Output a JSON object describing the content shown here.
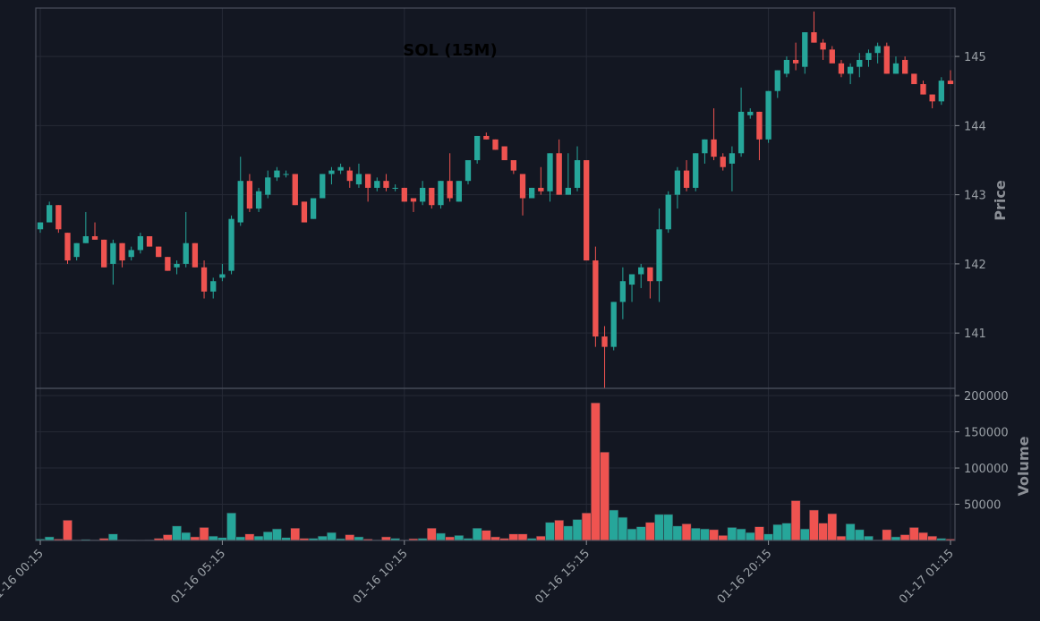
{
  "chart_data": {
    "type": "candlestick",
    "title": "SOL (15M)",
    "price_axis": {
      "label": "Price",
      "ylim": [
        140.2,
        145.7
      ],
      "ticks": [
        "141",
        "142",
        "143",
        "144",
        "145"
      ]
    },
    "volume_axis": {
      "label": "Volume",
      "ylim": [
        0,
        210000
      ],
      "ticks": [
        "50000",
        "100000",
        "150000",
        "200000"
      ]
    },
    "x_ticks": [
      "01-16 00:15",
      "01-16 05:15",
      "01-16 10:15",
      "01-16 15:15",
      "01-16 20:15",
      "01-17 01:15"
    ],
    "grid": true,
    "colors": {
      "background": "#131722",
      "up": "#26a69a",
      "down": "#ef5350",
      "grid": "#262a36",
      "frame": "#4a4f5c"
    },
    "candles": [
      [
        142.5,
        142.6,
        142.45,
        142.6,
        2000
      ],
      [
        142.6,
        142.9,
        142.6,
        142.85,
        5000
      ],
      [
        142.85,
        142.85,
        142.45,
        142.5,
        2000
      ],
      [
        142.45,
        142.45,
        142.0,
        142.05,
        28000
      ],
      [
        142.1,
        142.3,
        142.05,
        142.3,
        1000
      ],
      [
        142.3,
        142.75,
        142.3,
        142.4,
        1500
      ],
      [
        142.4,
        142.6,
        142.35,
        142.35,
        1000
      ],
      [
        142.35,
        142.35,
        141.95,
        141.95,
        3000
      ],
      [
        142.0,
        142.35,
        141.7,
        142.3,
        9000
      ],
      [
        142.3,
        142.3,
        141.95,
        142.05,
        1000
      ],
      [
        142.1,
        142.25,
        142.05,
        142.2,
        800
      ],
      [
        142.2,
        142.45,
        142.15,
        142.4,
        500
      ],
      [
        142.4,
        142.4,
        142.25,
        142.25,
        1000
      ],
      [
        142.25,
        142.25,
        142.1,
        142.1,
        3000
      ],
      [
        142.1,
        142.1,
        141.9,
        141.9,
        8000
      ],
      [
        141.95,
        142.05,
        141.85,
        142.0,
        20000
      ],
      [
        142.0,
        142.75,
        141.95,
        142.3,
        11000
      ],
      [
        142.3,
        142.3,
        141.95,
        141.95,
        5000
      ],
      [
        141.95,
        142.05,
        141.5,
        141.6,
        18000
      ],
      [
        141.6,
        141.8,
        141.5,
        141.75,
        6000
      ],
      [
        141.8,
        142.0,
        141.75,
        141.85,
        4000
      ],
      [
        141.9,
        142.7,
        141.85,
        142.65,
        38000
      ],
      [
        142.6,
        143.55,
        142.55,
        143.2,
        5000
      ],
      [
        143.2,
        143.3,
        142.75,
        142.8,
        9000
      ],
      [
        142.8,
        143.1,
        142.75,
        143.05,
        6000
      ],
      [
        143.0,
        143.35,
        142.95,
        143.25,
        12000
      ],
      [
        143.25,
        143.4,
        143.2,
        143.35,
        16000
      ],
      [
        143.3,
        143.35,
        143.25,
        143.3,
        4000
      ],
      [
        143.3,
        143.3,
        142.85,
        142.85,
        17000
      ],
      [
        142.9,
        142.9,
        142.6,
        142.6,
        3000
      ],
      [
        142.65,
        142.95,
        142.65,
        142.95,
        3000
      ],
      [
        142.95,
        143.3,
        142.95,
        143.3,
        6000
      ],
      [
        143.3,
        143.4,
        143.15,
        143.35,
        11000
      ],
      [
        143.35,
        143.45,
        143.3,
        143.4,
        2500
      ],
      [
        143.35,
        143.4,
        143.1,
        143.2,
        8000
      ],
      [
        143.15,
        143.45,
        143.1,
        143.3,
        5000
      ],
      [
        143.3,
        143.3,
        142.9,
        143.1,
        2000
      ],
      [
        143.1,
        143.25,
        143.05,
        143.2,
        1000
      ],
      [
        143.2,
        143.3,
        143.05,
        143.1,
        5000
      ],
      [
        143.1,
        143.15,
        143.05,
        143.1,
        3000
      ],
      [
        143.1,
        143.1,
        142.9,
        142.9,
        1000
      ],
      [
        142.95,
        142.95,
        142.75,
        142.9,
        2500
      ],
      [
        142.9,
        143.2,
        142.85,
        143.1,
        3000
      ],
      [
        143.1,
        143.1,
        142.8,
        142.85,
        17000
      ],
      [
        142.85,
        143.2,
        142.8,
        143.2,
        10000
      ],
      [
        143.2,
        143.6,
        142.9,
        142.95,
        5000
      ],
      [
        142.9,
        143.2,
        142.9,
        143.2,
        7000
      ],
      [
        143.2,
        143.5,
        143.15,
        143.5,
        3000
      ],
      [
        143.5,
        143.85,
        143.45,
        143.85,
        17000
      ],
      [
        143.85,
        143.9,
        143.8,
        143.8,
        14000
      ],
      [
        143.8,
        143.8,
        143.65,
        143.65,
        5000
      ],
      [
        143.7,
        143.7,
        143.5,
        143.5,
        3000
      ],
      [
        143.5,
        143.5,
        143.3,
        143.35,
        9000
      ],
      [
        143.3,
        143.3,
        142.7,
        142.95,
        9000
      ],
      [
        142.95,
        143.1,
        142.95,
        143.1,
        3000
      ],
      [
        143.1,
        143.4,
        143.0,
        143.05,
        6000
      ],
      [
        143.05,
        143.6,
        142.9,
        143.6,
        25000
      ],
      [
        143.6,
        143.8,
        143.0,
        143.0,
        28000
      ],
      [
        143.0,
        143.6,
        143.0,
        143.1,
        20000
      ],
      [
        143.1,
        143.7,
        143.05,
        143.5,
        29000
      ],
      [
        143.5,
        143.5,
        142.05,
        142.05,
        38000
      ],
      [
        142.05,
        142.25,
        140.8,
        140.95,
        190000
      ],
      [
        140.95,
        141.1,
        140.2,
        140.8,
        122000
      ],
      [
        140.8,
        141.45,
        140.75,
        141.45,
        42000
      ],
      [
        141.45,
        141.95,
        141.2,
        141.75,
        32000
      ],
      [
        141.7,
        141.85,
        141.45,
        141.85,
        16000
      ],
      [
        141.85,
        142.0,
        141.65,
        141.95,
        19000
      ],
      [
        141.95,
        141.95,
        141.5,
        141.75,
        25000
      ],
      [
        141.75,
        142.8,
        141.45,
        142.5,
        36000
      ],
      [
        142.5,
        143.05,
        142.45,
        143.0,
        36000
      ],
      [
        143.0,
        143.4,
        142.8,
        143.35,
        20000
      ],
      [
        143.35,
        143.5,
        143.05,
        143.1,
        23000
      ],
      [
        143.1,
        143.6,
        143.05,
        143.6,
        17000
      ],
      [
        143.6,
        143.8,
        143.45,
        143.8,
        16000
      ],
      [
        143.8,
        144.25,
        143.5,
        143.55,
        15000
      ],
      [
        143.55,
        143.6,
        143.35,
        143.4,
        7000
      ],
      [
        143.45,
        143.7,
        143.05,
        143.6,
        18000
      ],
      [
        143.6,
        144.55,
        143.55,
        144.2,
        16000
      ],
      [
        144.15,
        144.25,
        144.1,
        144.2,
        11000
      ],
      [
        144.2,
        144.2,
        143.5,
        143.8,
        19000
      ],
      [
        143.8,
        144.5,
        143.75,
        144.5,
        9000
      ],
      [
        144.5,
        144.8,
        144.4,
        144.8,
        22000
      ],
      [
        144.75,
        145.0,
        144.7,
        144.95,
        24000
      ],
      [
        144.95,
        145.2,
        144.8,
        144.9,
        55000
      ],
      [
        144.85,
        145.35,
        144.75,
        145.35,
        16000
      ],
      [
        145.35,
        145.65,
        145.2,
        145.2,
        42000
      ],
      [
        145.2,
        145.25,
        144.95,
        145.1,
        24000
      ],
      [
        145.1,
        145.15,
        144.95,
        144.9,
        37000
      ],
      [
        144.9,
        144.95,
        144.7,
        144.75,
        6000
      ],
      [
        144.75,
        144.9,
        144.6,
        144.85,
        23000
      ],
      [
        144.85,
        145.05,
        144.7,
        144.95,
        15000
      ],
      [
        144.95,
        145.1,
        144.85,
        145.05,
        6000
      ],
      [
        145.05,
        145.2,
        144.9,
        145.15,
        1000
      ],
      [
        145.15,
        145.2,
        144.75,
        144.75,
        15000
      ],
      [
        144.75,
        145.0,
        144.75,
        144.9,
        5000
      ],
      [
        144.95,
        145.0,
        144.75,
        144.75,
        8000
      ],
      [
        144.75,
        144.75,
        144.6,
        144.6,
        18000
      ],
      [
        144.6,
        144.65,
        144.45,
        144.45,
        11000
      ],
      [
        144.45,
        144.45,
        144.25,
        144.35,
        6000
      ],
      [
        144.35,
        144.7,
        144.3,
        144.65,
        3000
      ],
      [
        144.65,
        144.8,
        144.6,
        144.6,
        2000
      ]
    ]
  }
}
